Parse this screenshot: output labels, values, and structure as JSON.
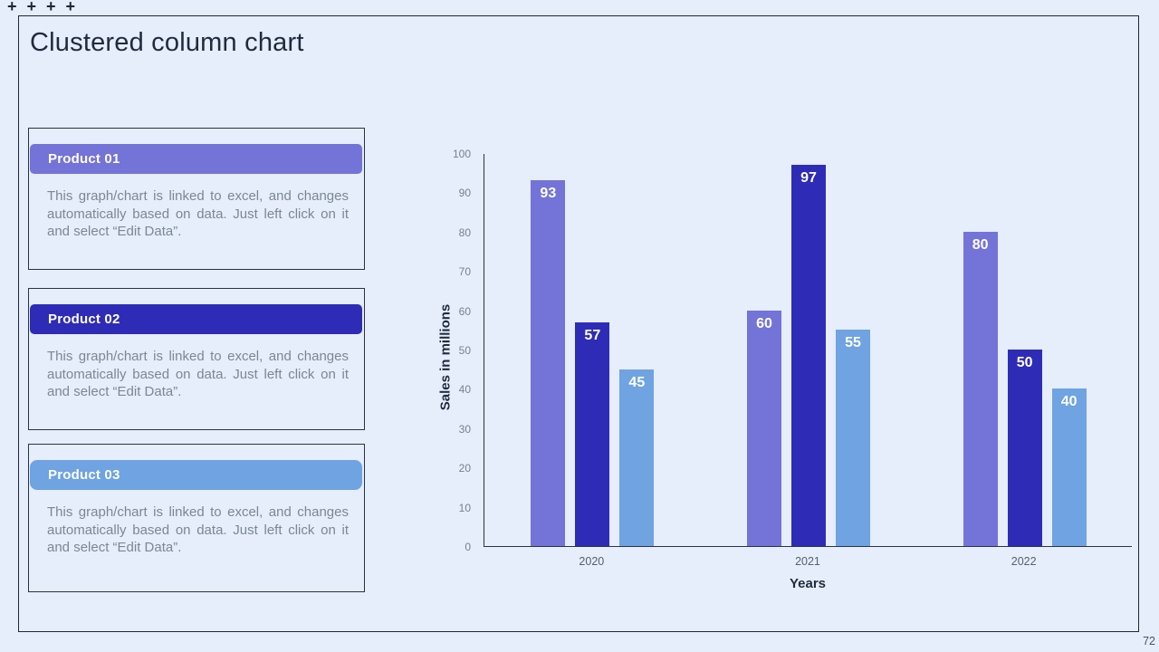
{
  "slide": {
    "title": "Clustered column chart",
    "page_number": "72",
    "decor": "+ + + +",
    "background_color": "#e6edfb",
    "border_color": "#1e2836"
  },
  "cards": [
    {
      "label": "Product 01",
      "header_color": "#7473d7",
      "body": "This graph/chart is linked to excel, and changes automatically based on data. Just left click on it and select “Edit Data”."
    },
    {
      "label": "Product 02",
      "header_color": "#2e2cb6",
      "body": "This graph/chart is linked to excel, and changes automatically based on data. Just left click on it and select “Edit Data”."
    },
    {
      "label": "Product 03",
      "header_color": "#6fa3e2",
      "body": "This graph/chart is linked to excel, and changes automatically based on data. Just left click on it and select “Edit Data”."
    }
  ],
  "chart_data": {
    "type": "bar",
    "title": "",
    "categories": [
      "2020",
      "2021",
      "2022"
    ],
    "series": [
      {
        "name": "Product 01",
        "color": "#7473d7",
        "values": [
          93,
          60,
          80
        ]
      },
      {
        "name": "Product 02",
        "color": "#2e2cb6",
        "values": [
          57,
          97,
          50
        ]
      },
      {
        "name": "Product 03",
        "color": "#6fa3e2",
        "values": [
          45,
          55,
          40
        ]
      }
    ],
    "xlabel": "Years",
    "ylabel": "Sales in millions",
    "ylim": [
      0,
      100
    ],
    "ytick_step": 10,
    "grid": false,
    "legend_position": "none",
    "data_labels": true
  }
}
